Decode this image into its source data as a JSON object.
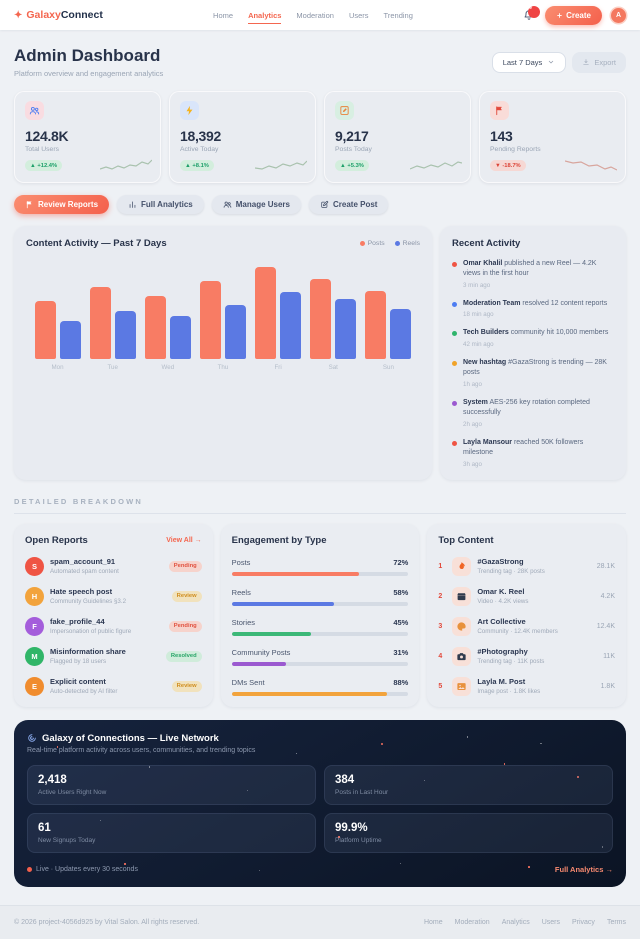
{
  "brand": {
    "star": "✦",
    "name_left": "Galaxy",
    "name_right": "Connect"
  },
  "nav": {
    "items": [
      {
        "label": "Home"
      },
      {
        "label": "Analytics",
        "active": true
      },
      {
        "label": "Moderation"
      },
      {
        "label": "Users"
      },
      {
        "label": "Trending"
      }
    ],
    "bell_icon": "bell-icon",
    "bell_count": "9",
    "create_icon": "plus-icon",
    "create_label": "Create",
    "avatar_initial": "A"
  },
  "header": {
    "title": "Admin Dashboard",
    "subtitle": "Platform overview and engagement analytics",
    "range_label": "Last 7 Days",
    "range_icon": "chevron-down-icon",
    "export_label": "Export",
    "export_icon": "download-icon"
  },
  "stats": {
    "items": [
      {
        "icon": "users-icon",
        "icon_color": "#4d7df2",
        "tile_bg": "#f9dce1",
        "value": "124.8K",
        "label": "Total Users",
        "delta": "▲ +12.4%",
        "delta_color": "#1ea06a",
        "delta_bg": "#d3eedd",
        "spark_color": "#a9c2ae"
      },
      {
        "icon": "bolt-icon",
        "icon_color": "#f5b31e",
        "tile_bg": "#d9e5fa",
        "value": "18,392",
        "label": "Active Today",
        "delta": "▲ +8.1%",
        "delta_color": "#1ea06a",
        "delta_bg": "#d3eedd",
        "spark_color": "#a9c2ae"
      },
      {
        "icon": "note-icon",
        "icon_color": "#e8823a",
        "tile_bg": "#d8efe2",
        "value": "9,217",
        "label": "Posts Today",
        "delta": "▲ +5.3%",
        "delta_color": "#1ea06a",
        "delta_bg": "#d3eedd",
        "spark_color": "#a9c2ae"
      },
      {
        "icon": "flag-icon",
        "icon_color": "#e2493b",
        "tile_bg": "#f9dcd8",
        "value": "143",
        "label": "Pending Reports",
        "delta": "▼ -18.7%",
        "delta_color": "#dc4437",
        "delta_bg": "#f6d8d4",
        "spark_color": "#d8a59d"
      }
    ]
  },
  "actions": {
    "items": [
      {
        "icon": "flag-icon",
        "label": "Review Reports"
      },
      {
        "icon": "chart-icon",
        "label": "Full Analytics"
      },
      {
        "icon": "users-icon",
        "label": "Manage Users"
      },
      {
        "icon": "edit-icon",
        "label": "Create Post"
      }
    ]
  },
  "chart_data": {
    "type": "bar",
    "title": "Content Activity — Past 7 Days",
    "categories": [
      "Mon",
      "Tue",
      "Wed",
      "Thu",
      "Fri",
      "Sat",
      "Sun"
    ],
    "series": [
      {
        "name": "Posts",
        "color": "#f87c64",
        "values": [
          62,
          78,
          68,
          84,
          100,
          86,
          73
        ]
      },
      {
        "name": "Reels",
        "color": "#5b79e3",
        "values": [
          41,
          52,
          46,
          58,
          72,
          65,
          54
        ]
      }
    ],
    "ylim": [
      0,
      100
    ],
    "unit": "relative-height-percent",
    "legend_position": "top-right",
    "grid": false
  },
  "recent_activity": {
    "title": "Recent Activity",
    "items": [
      {
        "dot_color": "#ef5444",
        "actor": "Omar Khalil",
        "text": " published a new Reel — 4.2K views in the first hour",
        "time": "3 min ago"
      },
      {
        "dot_color": "#4d7df2",
        "actor": "Moderation Team",
        "text": " resolved 12 content reports",
        "time": "18 min ago"
      },
      {
        "dot_color": "#2fb46c",
        "actor": "Tech Builders",
        "text": " community hit 10,000 members",
        "time": "42 min ago"
      },
      {
        "dot_color": "#f0a32a",
        "actor": "New hashtag",
        "text": " #GazaStrong is trending — 28K posts",
        "time": "1h ago"
      },
      {
        "dot_color": "#9b59d0",
        "actor": "System",
        "text": " AES-256 key rotation completed successfully",
        "time": "2h ago"
      },
      {
        "dot_color": "#ef5444",
        "actor": "Layla Mansour",
        "text": " reached 50K followers milestone",
        "time": "3h ago"
      }
    ]
  },
  "breakdown_label": "DETAILED BREAKDOWN",
  "open_reports": {
    "title": "Open Reports",
    "view_all": "View All →",
    "items": [
      {
        "initial": "S",
        "avatar_color": "#ef5444",
        "title": "spam_account_91",
        "subtitle": "Automated spam content",
        "status": "Pending",
        "status_color": "#e0513f",
        "status_bg": "#f6d3cc"
      },
      {
        "initial": "H",
        "avatar_color": "#f2a33c",
        "title": "Hate speech post",
        "subtitle": "Community Guidelines §3.2",
        "status": "Review",
        "status_color": "#cf8d1e",
        "status_bg": "#f1e2bd"
      },
      {
        "initial": "F",
        "avatar_color": "#a45ddb",
        "title": "fake_profile_44",
        "subtitle": "Impersonation of public figure",
        "status": "Pending",
        "status_color": "#e0513f",
        "status_bg": "#f6d3cc"
      },
      {
        "initial": "M",
        "avatar_color": "#30b568",
        "title": "Misinformation share",
        "subtitle": "Flagged by 18 users",
        "status": "Resolved",
        "status_color": "#27a567",
        "status_bg": "#d0ecdb"
      },
      {
        "initial": "E",
        "avatar_color": "#f08c2e",
        "title": "Explicit content",
        "subtitle": "Auto-detected by AI filter",
        "status": "Review",
        "status_color": "#cf8d1e",
        "status_bg": "#f1e2bd"
      }
    ]
  },
  "engagement": {
    "title": "Engagement by Type",
    "items": [
      {
        "label": "Posts",
        "pct": "72%",
        "value": 72,
        "color": "#f87c64"
      },
      {
        "label": "Reels",
        "pct": "58%",
        "value": 58,
        "color": "#5b79e3"
      },
      {
        "label": "Stories",
        "pct": "45%",
        "value": 45,
        "color": "#3cb878"
      },
      {
        "label": "Community Posts",
        "pct": "31%",
        "value": 31,
        "color": "#9b59d0"
      },
      {
        "label": "DMs Sent",
        "pct": "88%",
        "value": 88,
        "color": "#f2a33c"
      }
    ]
  },
  "top_content": {
    "title": "Top Content",
    "items": [
      {
        "rank": "1",
        "icon": "fire-icon",
        "icon_color": "#f06423",
        "tile_bg": "#f8e0d8",
        "title": "#GazaStrong",
        "subtitle": "Trending tag · 28K posts",
        "metric": "28.1K"
      },
      {
        "rank": "2",
        "icon": "clapper-icon",
        "icon_color": "#303b4d",
        "tile_bg": "#f8e0d8",
        "title": "Omar K. Reel",
        "subtitle": "Video · 4.2K views",
        "metric": "4.2K"
      },
      {
        "rank": "3",
        "icon": "palette-icon",
        "icon_color": "#e8913c",
        "tile_bg": "#f8e0d8",
        "title": "Art Collective",
        "subtitle": "Community · 12.4K members",
        "metric": "12.4K"
      },
      {
        "rank": "4",
        "icon": "camera-icon",
        "icon_color": "#303b4d",
        "tile_bg": "#f8e0d8",
        "title": "#Photography",
        "subtitle": "Trending tag · 11K posts",
        "metric": "11K"
      },
      {
        "rank": "5",
        "icon": "image-icon",
        "icon_color": "#e8913c",
        "tile_bg": "#f8e0d8",
        "title": "Layla M. Post",
        "subtitle": "Image post · 1.8K likes",
        "metric": "1.8K"
      }
    ]
  },
  "live": {
    "icon": "galaxy-icon",
    "title": "Galaxy of Connections — Live Network",
    "subtitle": "Real-time platform activity across users, communities, and trending topics",
    "stats": [
      {
        "value": "2,418",
        "label": "Active Users Right Now"
      },
      {
        "value": "384",
        "label": "Posts in Last Hour"
      },
      {
        "value": "61",
        "label": "New Signups Today"
      },
      {
        "value": "99.9%",
        "label": "Platform Uptime"
      }
    ],
    "status": "Live · Updates every 30 seconds",
    "link_label": "Full Analytics →"
  },
  "footer": {
    "copyright": "© 2026 project-4056d925 by Vital Salon. All rights reserved.",
    "links": [
      "Home",
      "Moderation",
      "Analytics",
      "Users",
      "Privacy",
      "Terms"
    ]
  }
}
